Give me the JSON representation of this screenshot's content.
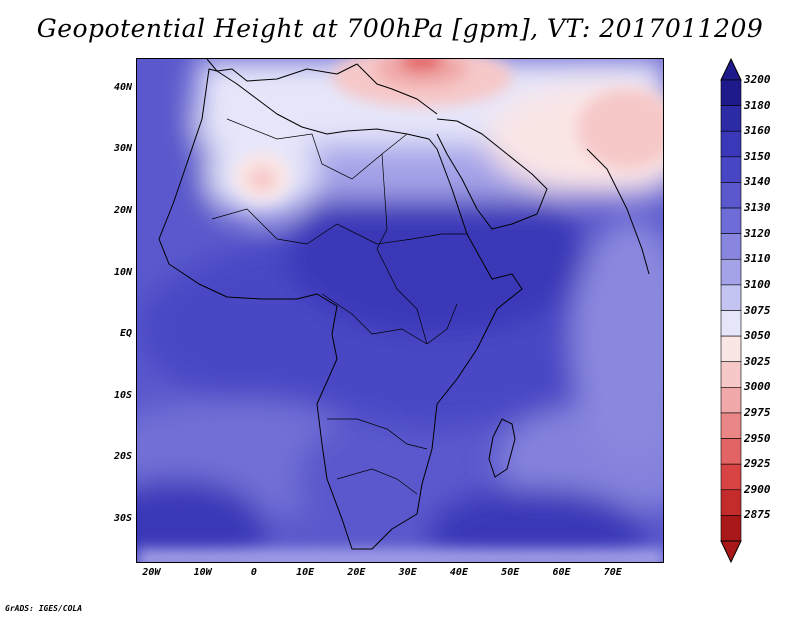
{
  "title": "Geopotential Height at 700hPa [gpm], VT: 2017011209",
  "footer": "GrADS: IGES/COLA",
  "map": {
    "lon_range": [
      -23,
      80
    ],
    "lat_range": [
      -37,
      45
    ],
    "lat_ticks": [
      {
        "value": 40,
        "label": "40N"
      },
      {
        "value": 30,
        "label": "30N"
      },
      {
        "value": 20,
        "label": "20N"
      },
      {
        "value": 10,
        "label": "10N"
      },
      {
        "value": 0,
        "label": "EQ"
      },
      {
        "value": -10,
        "label": "10S"
      },
      {
        "value": -20,
        "label": "20S"
      },
      {
        "value": -30,
        "label": "30S"
      }
    ],
    "lon_ticks": [
      {
        "value": -20,
        "label": "20W"
      },
      {
        "value": -10,
        "label": "10W"
      },
      {
        "value": 0,
        "label": "0"
      },
      {
        "value": 10,
        "label": "10E"
      },
      {
        "value": 20,
        "label": "20E"
      },
      {
        "value": 30,
        "label": "30E"
      },
      {
        "value": 40,
        "label": "40E"
      },
      {
        "value": 50,
        "label": "50E"
      },
      {
        "value": 60,
        "label": "60E"
      },
      {
        "value": 70,
        "label": "70E"
      }
    ]
  },
  "legend": {
    "levels": [
      "3200",
      "3180",
      "3160",
      "3150",
      "3140",
      "3130",
      "3120",
      "3110",
      "3100",
      "3075",
      "3050",
      "3025",
      "3000",
      "2975",
      "2950",
      "2925",
      "2900",
      "2875"
    ],
    "colors": [
      "#1e1a8c",
      "#2c2aa4",
      "#3a38b8",
      "#4846c4",
      "#5a58cc",
      "#6e6cd6",
      "#8886de",
      "#a4a3e8",
      "#c4c4f2",
      "#e6e6fa",
      "#fbe6e6",
      "#f6c8c8",
      "#f0a8a8",
      "#ea8686",
      "#e36464",
      "#d84444",
      "#c42c2c",
      "#a81818"
    ],
    "top_arrow_color": "#1e1a8c",
    "bottom_arrow_color": "#a81818"
  }
}
